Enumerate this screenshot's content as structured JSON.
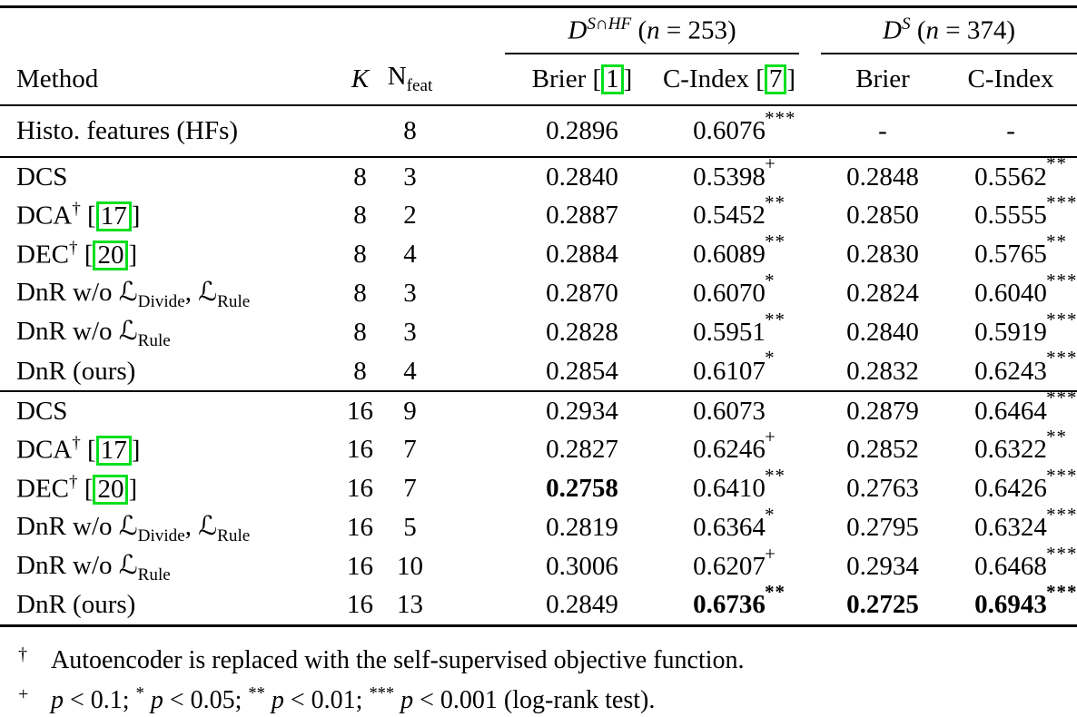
{
  "colors": {
    "citation_box": "#00df1e"
  },
  "table": {
    "group_headers": [
      {
        "label": "//D//^{//S//∩//HF//} (//n// = 253)"
      },
      {
        "label": "//D//^{//S//} (//n// = 374)"
      }
    ],
    "columns": {
      "method": "Method",
      "k": "//K//",
      "nfeat": "N_{feat}",
      "g1_brier": "Brier [[1]]",
      "g1_cindex": "C-Index [[7]]",
      "g2_brier": "Brier",
      "g2_cindex": "C-Index"
    },
    "rows": [
      {
        "method": "Histo. features (HFs)",
        "k": "",
        "nfeat": "8",
        "rule_below": true,
        "cells": [
          {
            "v": "0.2896"
          },
          {
            "v": "0.6076",
            "s": "***"
          },
          {
            "v": "-"
          },
          {
            "v": "-"
          }
        ]
      },
      {
        "method": "DCS",
        "k": "8",
        "nfeat": "3",
        "cells": [
          {
            "v": "0.2840"
          },
          {
            "v": "0.5398",
            "s": "+"
          },
          {
            "v": "0.2848"
          },
          {
            "v": "0.5562",
            "s": "**"
          }
        ]
      },
      {
        "method": "DCA^{†} [[17]]",
        "k": "8",
        "nfeat": "2",
        "cells": [
          {
            "v": "0.2887"
          },
          {
            "v": "0.5452",
            "s": "**"
          },
          {
            "v": "0.2850"
          },
          {
            "v": "0.5555",
            "s": "***"
          }
        ]
      },
      {
        "method": "DEC^{†} [[20]]",
        "k": "8",
        "nfeat": "4",
        "cells": [
          {
            "v": "0.2884"
          },
          {
            "v": "0.6089",
            "s": "**"
          },
          {
            "v": "0.2830"
          },
          {
            "v": "0.5765",
            "s": "**"
          }
        ]
      },
      {
        "method": "DnR w/o ℒ_{Divide}, ℒ_{Rule}",
        "k": "8",
        "nfeat": "3",
        "cells": [
          {
            "v": "0.2870"
          },
          {
            "v": "0.6070",
            "s": "*"
          },
          {
            "v": "0.2824"
          },
          {
            "v": "0.6040",
            "s": "***"
          }
        ]
      },
      {
        "method": "DnR w/o ℒ_{Rule}",
        "k": "8",
        "nfeat": "3",
        "cells": [
          {
            "v": "0.2828"
          },
          {
            "v": "0.5951",
            "s": "**"
          },
          {
            "v": "0.2840"
          },
          {
            "v": "0.5919",
            "s": "***"
          }
        ]
      },
      {
        "method": "DnR (ours)",
        "k": "8",
        "nfeat": "4",
        "rule_below": true,
        "cells": [
          {
            "v": "0.2854"
          },
          {
            "v": "0.6107",
            "s": "*"
          },
          {
            "v": "0.2832"
          },
          {
            "v": "0.6243",
            "s": "***"
          }
        ]
      },
      {
        "method": "DCS",
        "k": "16",
        "nfeat": "9",
        "cells": [
          {
            "v": "0.2934"
          },
          {
            "v": "0.6073"
          },
          {
            "v": "0.2879"
          },
          {
            "v": "0.6464",
            "s": "***"
          }
        ]
      },
      {
        "method": "DCA^{†} [[17]]",
        "k": "16",
        "nfeat": "7",
        "cells": [
          {
            "v": "0.2827"
          },
          {
            "v": "0.6246",
            "s": "+"
          },
          {
            "v": "0.2852"
          },
          {
            "v": "0.6322",
            "s": "**"
          }
        ]
      },
      {
        "method": "DEC^{†} [[20]]",
        "k": "16",
        "nfeat": "7",
        "cells": [
          {
            "v": "0.2758",
            "b": true
          },
          {
            "v": "0.6410",
            "s": "**"
          },
          {
            "v": "0.2763"
          },
          {
            "v": "0.6426",
            "s": "***"
          }
        ]
      },
      {
        "method": "DnR w/o ℒ_{Divide}, ℒ_{Rule}",
        "k": "16",
        "nfeat": "5",
        "cells": [
          {
            "v": "0.2819"
          },
          {
            "v": "0.6364",
            "s": "*"
          },
          {
            "v": "0.2795"
          },
          {
            "v": "0.6324",
            "s": "***"
          }
        ]
      },
      {
        "method": "DnR w/o ℒ_{Rule}",
        "k": "16",
        "nfeat": "10",
        "cells": [
          {
            "v": "0.3006"
          },
          {
            "v": "0.6207",
            "s": "+"
          },
          {
            "v": "0.2934"
          },
          {
            "v": "0.6468",
            "s": "***"
          }
        ]
      },
      {
        "method": "DnR (ours)",
        "k": "16",
        "nfeat": "13",
        "cells": [
          {
            "v": "0.2849"
          },
          {
            "v": "0.6736",
            "s": "**",
            "b": true
          },
          {
            "v": "0.2725",
            "b": true
          },
          {
            "v": "0.6943",
            "s": "***",
            "b": true
          }
        ]
      }
    ],
    "footnotes": [
      {
        "marker": "†",
        "text": "Autoencoder is replaced with the self-supervised objective function."
      },
      {
        "marker": "+",
        "text": "//p// < 0.1; ^{*} //p// < 0.05; ^{**} //p// < 0.01; ^{***} //p// < 0.001 (log-rank test)."
      }
    ]
  }
}
